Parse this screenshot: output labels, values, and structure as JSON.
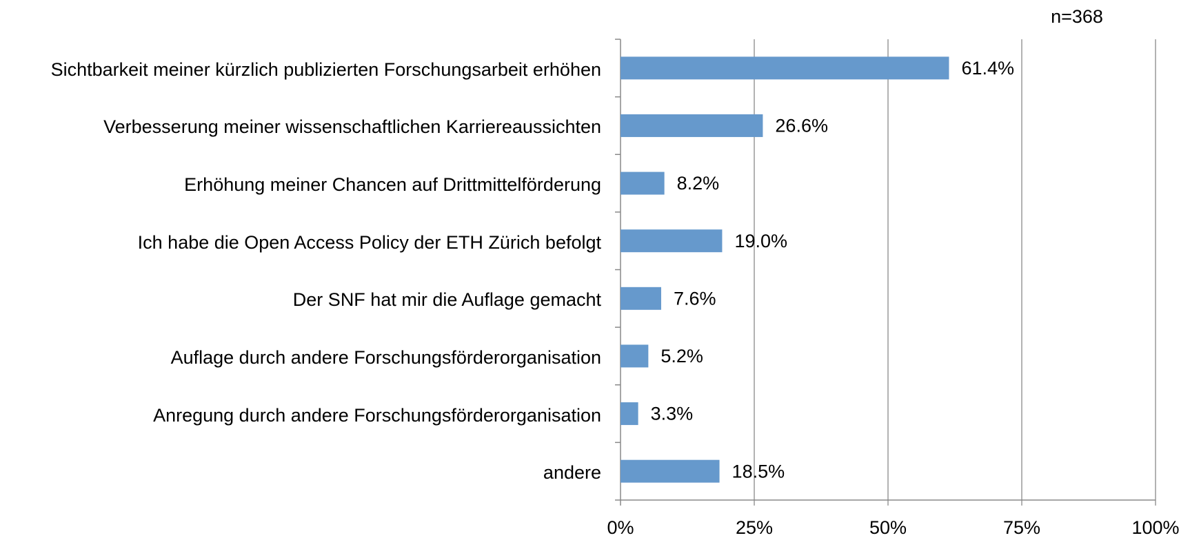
{
  "chart_data": {
    "type": "barh",
    "annotation": "n=368",
    "categories": [
      "Sichtbarkeit meiner kürzlich publizierten Forschungsarbeit erhöhen",
      "Verbesserung meiner wissenschaftlichen Karriereaussichten",
      "Erhöhung meiner Chancen auf Drittmittelförderung",
      "Ich habe die Open Access Policy der ETH Zürich befolgt",
      "Der SNF hat mir die Auflage gemacht",
      "Auflage durch andere Forschungsförderorganisation",
      "Anregung durch andere Forschungsförderorganisation",
      "andere"
    ],
    "values": [
      61.4,
      26.6,
      8.2,
      19.0,
      7.6,
      5.2,
      3.3,
      18.5
    ],
    "value_labels": [
      "61.4%",
      "26.6%",
      "8.2%",
      "19.0%",
      "7.6%",
      "5.2%",
      "3.3%",
      "18.5%"
    ],
    "color": "#6699cc",
    "xlim": [
      0,
      100
    ],
    "xticks": [
      {
        "value": 0,
        "label": "0%"
      },
      {
        "value": 25,
        "label": "25%"
      },
      {
        "value": 50,
        "label": "50%"
      },
      {
        "value": 75,
        "label": "75%"
      },
      {
        "value": 100,
        "label": "100%"
      }
    ],
    "grid": true
  }
}
